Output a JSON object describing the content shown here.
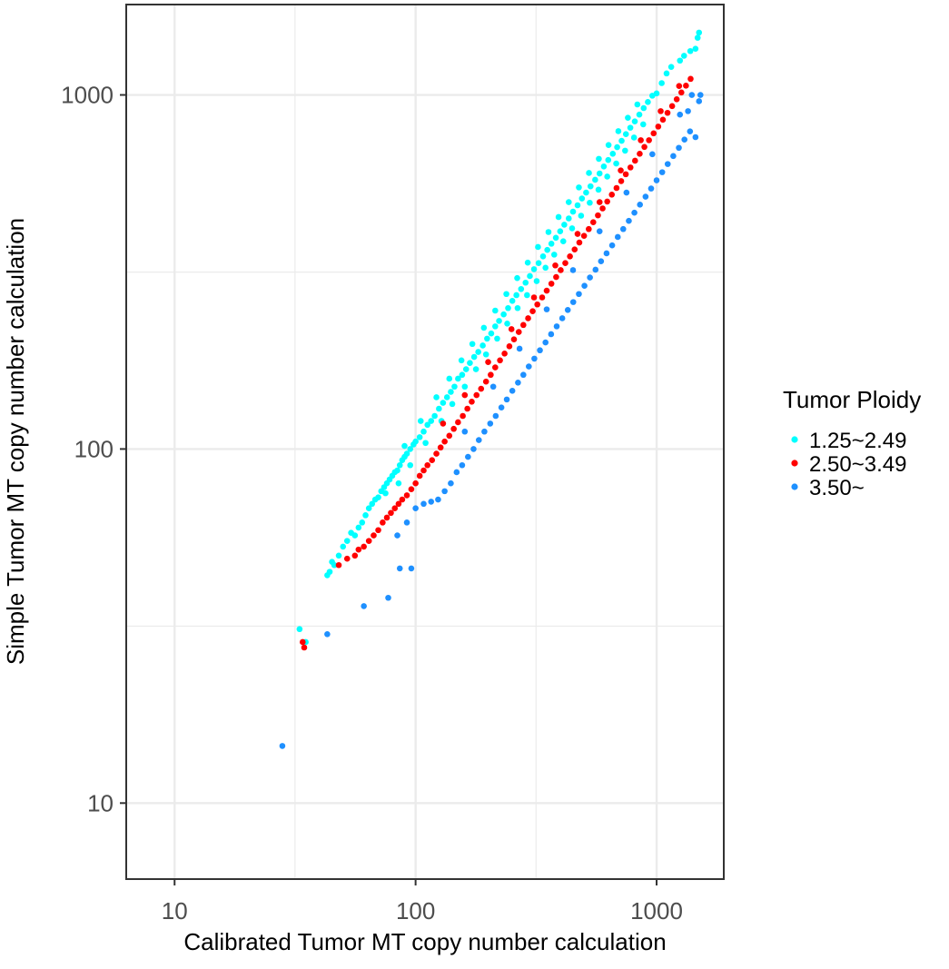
{
  "chart_data": {
    "type": "scatter",
    "xlabel": "Calibrated Tumor MT copy number calculation",
    "ylabel": "Simple Tumor MT copy number calculation",
    "x_scale": "log10",
    "y_scale": "log10",
    "xlim": [
      6.3,
      1900
    ],
    "ylim": [
      6.1,
      1800
    ],
    "x_ticks": [
      10,
      100,
      1000
    ],
    "x_tick_labels": [
      "10",
      "100",
      "1000"
    ],
    "y_ticks": [
      10,
      100,
      1000
    ],
    "y_tick_labels": [
      "10",
      "100",
      "1000"
    ],
    "grid": true,
    "legend": {
      "title": "Tumor Ploidy",
      "position": "right"
    },
    "series": [
      {
        "name": "1.25~2.49",
        "color": "#00FFFF",
        "points": [
          [
            33,
            31
          ],
          [
            35,
            28.5
          ],
          [
            43,
            44
          ],
          [
            44,
            45
          ],
          [
            45,
            48
          ],
          [
            46,
            47
          ],
          [
            48,
            50
          ],
          [
            50,
            53
          ],
          [
            52,
            55
          ],
          [
            54,
            58
          ],
          [
            56,
            57
          ],
          [
            58,
            60
          ],
          [
            60,
            62
          ],
          [
            62,
            65
          ],
          [
            64,
            68
          ],
          [
            66,
            70
          ],
          [
            68,
            72
          ],
          [
            70,
            73
          ],
          [
            72,
            76
          ],
          [
            74,
            78
          ],
          [
            76,
            80
          ],
          [
            78,
            82
          ],
          [
            80,
            84
          ],
          [
            82,
            86
          ],
          [
            84,
            87
          ],
          [
            86,
            90
          ],
          [
            88,
            93
          ],
          [
            90,
            95
          ],
          [
            92,
            97
          ],
          [
            95,
            100
          ],
          [
            98,
            103
          ],
          [
            100,
            105
          ],
          [
            104,
            108
          ],
          [
            108,
            112
          ],
          [
            112,
            117
          ],
          [
            116,
            120
          ],
          [
            120,
            124
          ],
          [
            125,
            130
          ],
          [
            130,
            135
          ],
          [
            135,
            140
          ],
          [
            140,
            145
          ],
          [
            145,
            150
          ],
          [
            150,
            158
          ],
          [
            156,
            162
          ],
          [
            162,
            168
          ],
          [
            168,
            175
          ],
          [
            175,
            182
          ],
          [
            182,
            188
          ],
          [
            190,
            196
          ],
          [
            198,
            205
          ],
          [
            206,
            212
          ],
          [
            214,
            222
          ],
          [
            222,
            230
          ],
          [
            232,
            240
          ],
          [
            242,
            250
          ],
          [
            252,
            262
          ],
          [
            262,
            272
          ],
          [
            274,
            283
          ],
          [
            286,
            295
          ],
          [
            298,
            308
          ],
          [
            310,
            322
          ],
          [
            324,
            335
          ],
          [
            338,
            350
          ],
          [
            352,
            365
          ],
          [
            366,
            380
          ],
          [
            382,
            395
          ],
          [
            398,
            412
          ],
          [
            414,
            430
          ],
          [
            432,
            448
          ],
          [
            450,
            468
          ],
          [
            470,
            488
          ],
          [
            490,
            510
          ],
          [
            510,
            530
          ],
          [
            532,
            552
          ],
          [
            556,
            576
          ],
          [
            580,
            600
          ],
          [
            604,
            628
          ],
          [
            630,
            655
          ],
          [
            658,
            682
          ],
          [
            686,
            712
          ],
          [
            716,
            742
          ],
          [
            746,
            775
          ],
          [
            778,
            808
          ],
          [
            812,
            842
          ],
          [
            848,
            880
          ],
          [
            884,
            918
          ],
          [
            920,
            955
          ],
          [
            960,
            995
          ],
          [
            1000,
            1010
          ],
          [
            1050,
            1080
          ],
          [
            1100,
            1150
          ],
          [
            1150,
            1200
          ],
          [
            1250,
            1250
          ],
          [
            1300,
            1290
          ],
          [
            1380,
            1330
          ],
          [
            1450,
            1350
          ],
          [
            1480,
            1450
          ],
          [
            1500,
            1500
          ],
          [
            75,
            75
          ],
          [
            85,
            80
          ],
          [
            95,
            90
          ],
          [
            110,
            104
          ],
          [
            128,
            120
          ],
          [
            142,
            134
          ],
          [
            160,
            150
          ],
          [
            178,
            168
          ],
          [
            196,
            185
          ],
          [
            218,
            205
          ],
          [
            240,
            226
          ],
          [
            265,
            250
          ],
          [
            290,
            272
          ],
          [
            318,
            298
          ],
          [
            346,
            325
          ],
          [
            376,
            354
          ],
          [
            410,
            386
          ],
          [
            446,
            420
          ],
          [
            486,
            456
          ],
          [
            528,
            496
          ],
          [
            574,
            540
          ],
          [
            624,
            588
          ],
          [
            680,
            640
          ],
          [
            740,
            696
          ],
          [
            806,
            758
          ],
          [
            880,
            826
          ],
          [
            90,
            102
          ],
          [
            105,
            120
          ],
          [
            122,
            140
          ],
          [
            138,
            158
          ],
          [
            155,
            178
          ],
          [
            172,
            198
          ],
          [
            192,
            220
          ],
          [
            214,
            246
          ],
          [
            238,
            274
          ],
          [
            264,
            304
          ],
          [
            292,
            336
          ],
          [
            322,
            372
          ],
          [
            356,
            410
          ],
          [
            392,
            452
          ],
          [
            432,
            498
          ],
          [
            476,
            548
          ],
          [
            524,
            602
          ],
          [
            576,
            660
          ],
          [
            632,
            722
          ],
          [
            694,
            790
          ],
          [
            760,
            862
          ],
          [
            832,
            940
          ]
        ]
      },
      {
        "name": "2.50~3.49",
        "color": "#FF0000",
        "points": [
          [
            34,
            28.5
          ],
          [
            34.5,
            27.5
          ],
          [
            48,
            47
          ],
          [
            52,
            49
          ],
          [
            56,
            50
          ],
          [
            58,
            52
          ],
          [
            61,
            53
          ],
          [
            64,
            55
          ],
          [
            67,
            57
          ],
          [
            70,
            59
          ],
          [
            73,
            62
          ],
          [
            76,
            64
          ],
          [
            79,
            66
          ],
          [
            82,
            68
          ],
          [
            85,
            70
          ],
          [
            88,
            72
          ],
          [
            92,
            74
          ],
          [
            96,
            77
          ],
          [
            100,
            80
          ],
          [
            104,
            84
          ],
          [
            108,
            87
          ],
          [
            112,
            90
          ],
          [
            117,
            93
          ],
          [
            122,
            97
          ],
          [
            127,
            101
          ],
          [
            132,
            105
          ],
          [
            138,
            109
          ],
          [
            144,
            114
          ],
          [
            150,
            119
          ],
          [
            157,
            124
          ],
          [
            164,
            130
          ],
          [
            171,
            136
          ],
          [
            179,
            142
          ],
          [
            187,
            148
          ],
          [
            196,
            155
          ],
          [
            205,
            162
          ],
          [
            214,
            170
          ],
          [
            224,
            178
          ],
          [
            234,
            186
          ],
          [
            245,
            195
          ],
          [
            256,
            204
          ],
          [
            268,
            214
          ],
          [
            280,
            224
          ],
          [
            293,
            234
          ],
          [
            306,
            245
          ],
          [
            320,
            256
          ],
          [
            335,
            268
          ],
          [
            350,
            280
          ],
          [
            366,
            293
          ],
          [
            383,
            306
          ],
          [
            400,
            320
          ],
          [
            418,
            335
          ],
          [
            437,
            350
          ],
          [
            457,
            366
          ],
          [
            478,
            383
          ],
          [
            500,
            400
          ],
          [
            523,
            418
          ],
          [
            546,
            437
          ],
          [
            571,
            457
          ],
          [
            597,
            478
          ],
          [
            624,
            500
          ],
          [
            652,
            523
          ],
          [
            682,
            546
          ],
          [
            713,
            571
          ],
          [
            745,
            597
          ],
          [
            779,
            624
          ],
          [
            814,
            652
          ],
          [
            851,
            682
          ],
          [
            890,
            713
          ],
          [
            930,
            745
          ],
          [
            972,
            779
          ],
          [
            1016,
            814
          ],
          [
            1062,
            851
          ],
          [
            1110,
            890
          ],
          [
            1160,
            930
          ],
          [
            1212,
            972
          ],
          [
            1267,
            1016
          ],
          [
            1324,
            1062
          ],
          [
            1384,
            1110
          ],
          [
            130,
            118
          ],
          [
            160,
            142
          ],
          [
            200,
            176
          ],
          [
            250,
            218
          ],
          [
            310,
            268
          ],
          [
            380,
            330
          ],
          [
            470,
            405
          ],
          [
            580,
            498
          ],
          [
            710,
            612
          ],
          [
            860,
            745
          ],
          [
            1040,
            900
          ],
          [
            1240,
            1060
          ]
        ]
      },
      {
        "name": "3.50~",
        "color": "#1E90FF",
        "points": [
          [
            28,
            14.5
          ],
          [
            43,
            30
          ],
          [
            61,
            36
          ],
          [
            77,
            38
          ],
          [
            86,
            46
          ],
          [
            96,
            46
          ],
          [
            92,
            62
          ],
          [
            84,
            57
          ],
          [
            100,
            68
          ],
          [
            108,
            70
          ],
          [
            116,
            71
          ],
          [
            124,
            72
          ],
          [
            132,
            76
          ],
          [
            140,
            80
          ],
          [
            148,
            86
          ],
          [
            156,
            90
          ],
          [
            165,
            95
          ],
          [
            174,
            100
          ],
          [
            183,
            106
          ],
          [
            193,
            112
          ],
          [
            204,
            118
          ],
          [
            215,
            124
          ],
          [
            227,
            131
          ],
          [
            239,
            138
          ],
          [
            252,
            146
          ],
          [
            266,
            154
          ],
          [
            280,
            162
          ],
          [
            295,
            171
          ],
          [
            311,
            180
          ],
          [
            328,
            190
          ],
          [
            346,
            200
          ],
          [
            365,
            211
          ],
          [
            385,
            222
          ],
          [
            406,
            234
          ],
          [
            428,
            247
          ],
          [
            451,
            260
          ],
          [
            476,
            274
          ],
          [
            502,
            289
          ],
          [
            529,
            305
          ],
          [
            558,
            321
          ],
          [
            588,
            339
          ],
          [
            620,
            357
          ],
          [
            654,
            376
          ],
          [
            690,
            397
          ],
          [
            727,
            418
          ],
          [
            767,
            441
          ],
          [
            809,
            465
          ],
          [
            853,
            490
          ],
          [
            900,
            516
          ],
          [
            949,
            544
          ],
          [
            1000,
            574
          ],
          [
            1055,
            605
          ],
          [
            1112,
            638
          ],
          [
            1173,
            672
          ],
          [
            1237,
            709
          ],
          [
            1305,
            748
          ],
          [
            1376,
            789
          ],
          [
            1450,
            760
          ],
          [
            1500,
            960
          ],
          [
            1520,
            1000
          ],
          [
            1400,
            1000
          ],
          [
            1350,
            900
          ],
          [
            160,
            112
          ],
          [
            210,
            150
          ],
          [
            270,
            192
          ],
          [
            350,
            248
          ],
          [
            450,
            320
          ],
          [
            580,
            412
          ],
          [
            750,
            530
          ],
          [
            960,
            680
          ],
          [
            1250,
            880
          ]
        ]
      }
    ]
  }
}
